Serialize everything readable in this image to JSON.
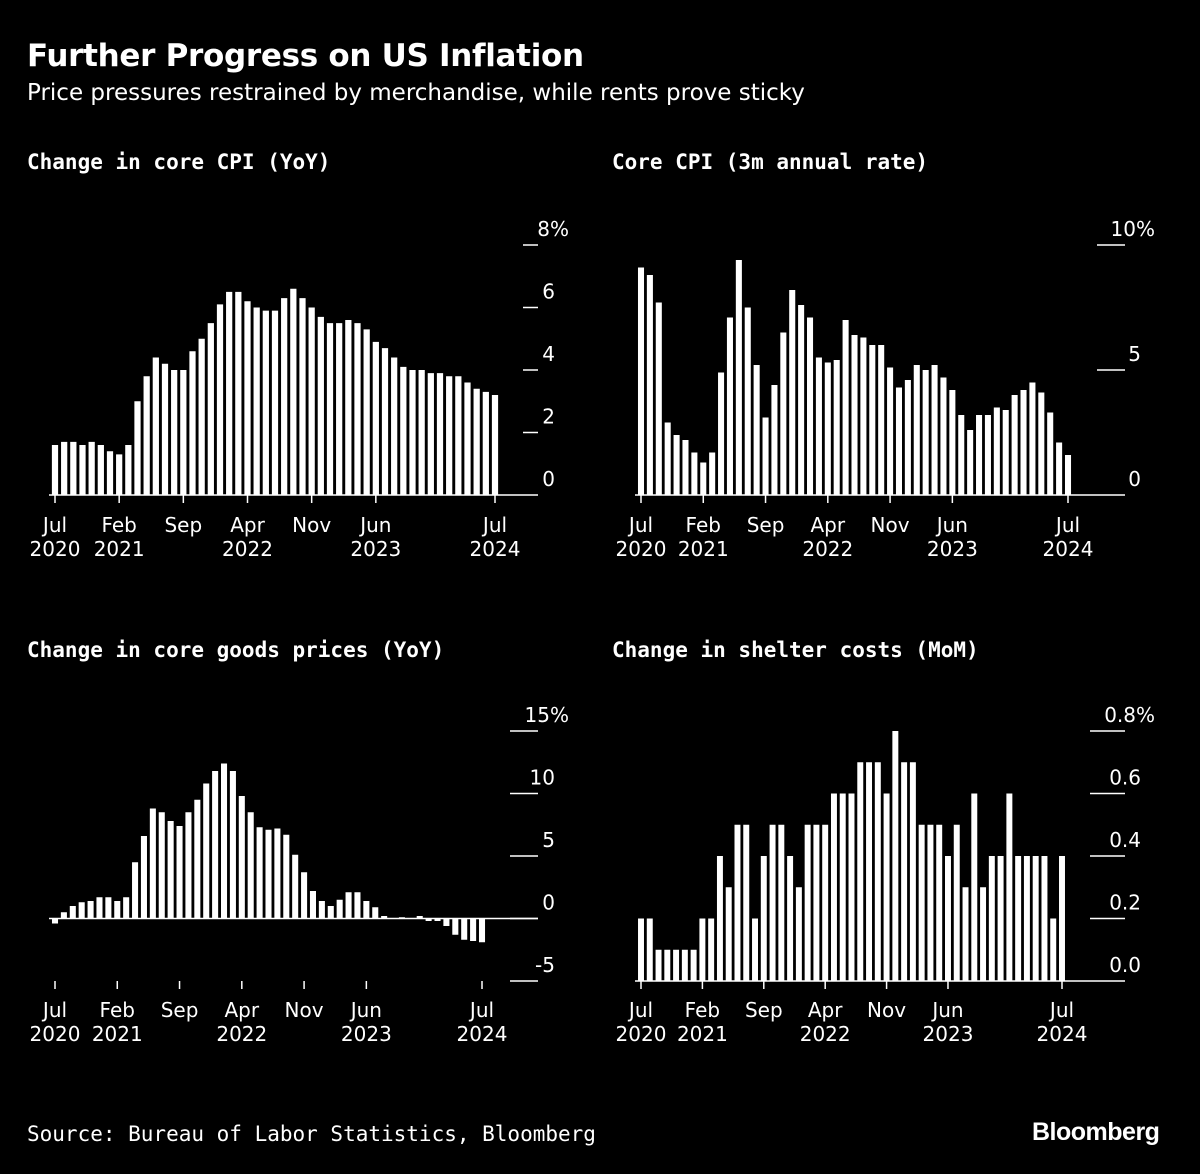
{
  "title": "Further Progress on US Inflation",
  "subtitle": "Price pressures restrained by merchandise, while rents prove sticky",
  "source": "Source: Bureau of Labor Statistics, Bloomberg",
  "logo": "Bloomberg",
  "colors": {
    "background": "#000000",
    "bars": "#ffffff",
    "text": "#ffffff"
  },
  "chart_data": [
    {
      "type": "bar",
      "title": "Change in core CPI (YoY)",
      "xlabel": "",
      "ylabel": "",
      "ylim": [
        0,
        8
      ],
      "grid": false,
      "y_ticks": [
        {
          "v": 0,
          "label": "0"
        },
        {
          "v": 2,
          "label": "2"
        },
        {
          "v": 4,
          "label": "4"
        },
        {
          "v": 6,
          "label": "6"
        },
        {
          "v": 8,
          "label": "8%"
        }
      ],
      "x_ticks": [
        {
          "at": "2020-07",
          "label": "Jul",
          "year": "2020"
        },
        {
          "at": "2021-02",
          "label": "Feb",
          "year": "2021"
        },
        {
          "at": "2021-09",
          "label": "Sep",
          "year": ""
        },
        {
          "at": "2022-04",
          "label": "Apr",
          "year": "2022"
        },
        {
          "at": "2022-11",
          "label": "Nov",
          "year": ""
        },
        {
          "at": "2023-06",
          "label": "Jun",
          "year": "2023"
        },
        {
          "at": "2024-07",
          "label": "Jul",
          "year": "2024"
        }
      ],
      "categories": [
        "2020-07",
        "2020-08",
        "2020-09",
        "2020-10",
        "2020-11",
        "2020-12",
        "2021-01",
        "2021-02",
        "2021-03",
        "2021-04",
        "2021-05",
        "2021-06",
        "2021-07",
        "2021-08",
        "2021-09",
        "2021-10",
        "2021-11",
        "2021-12",
        "2022-01",
        "2022-02",
        "2022-03",
        "2022-04",
        "2022-05",
        "2022-06",
        "2022-07",
        "2022-08",
        "2022-09",
        "2022-10",
        "2022-11",
        "2022-12",
        "2023-01",
        "2023-02",
        "2023-03",
        "2023-04",
        "2023-05",
        "2023-06",
        "2023-07",
        "2023-08",
        "2023-09",
        "2023-10",
        "2023-11",
        "2023-12",
        "2024-01",
        "2024-02",
        "2024-03",
        "2024-04",
        "2024-05",
        "2024-06",
        "2024-07"
      ],
      "values": [
        1.6,
        1.7,
        1.7,
        1.6,
        1.7,
        1.6,
        1.4,
        1.3,
        1.6,
        3.0,
        3.8,
        4.4,
        4.2,
        4.0,
        4.0,
        4.6,
        5.0,
        5.5,
        6.1,
        6.5,
        6.5,
        6.2,
        6.0,
        5.9,
        5.9,
        6.3,
        6.6,
        6.3,
        6.0,
        5.7,
        5.5,
        5.5,
        5.6,
        5.5,
        5.3,
        4.9,
        4.7,
        4.4,
        4.1,
        4.0,
        4.0,
        3.9,
        3.9,
        3.8,
        3.8,
        3.6,
        3.4,
        3.3,
        3.2
      ]
    },
    {
      "type": "bar",
      "title": "Core CPI (3m annual rate)",
      "xlabel": "",
      "ylabel": "",
      "ylim": [
        0,
        10
      ],
      "grid": false,
      "y_ticks": [
        {
          "v": 0,
          "label": "0"
        },
        {
          "v": 5,
          "label": "5"
        },
        {
          "v": 10,
          "label": "10%"
        }
      ],
      "x_ticks": [
        {
          "at": "2020-07",
          "label": "Jul",
          "year": "2020"
        },
        {
          "at": "2021-02",
          "label": "Feb",
          "year": "2021"
        },
        {
          "at": "2021-09",
          "label": "Sep",
          "year": ""
        },
        {
          "at": "2022-04",
          "label": "Apr",
          "year": "2022"
        },
        {
          "at": "2022-11",
          "label": "Nov",
          "year": ""
        },
        {
          "at": "2023-06",
          "label": "Jun",
          "year": "2023"
        },
        {
          "at": "2024-07",
          "label": "Jul",
          "year": "2024"
        }
      ],
      "categories": [
        "2020-07",
        "2020-08",
        "2020-09",
        "2020-10",
        "2020-11",
        "2020-12",
        "2021-01",
        "2021-02",
        "2021-03",
        "2021-04",
        "2021-05",
        "2021-06",
        "2021-07",
        "2021-08",
        "2021-09",
        "2021-10",
        "2021-11",
        "2021-12",
        "2022-01",
        "2022-02",
        "2022-03",
        "2022-04",
        "2022-05",
        "2022-06",
        "2022-07",
        "2022-08",
        "2022-09",
        "2022-10",
        "2022-11",
        "2022-12",
        "2023-01",
        "2023-02",
        "2023-03",
        "2023-04",
        "2023-05",
        "2023-06",
        "2023-07",
        "2023-08",
        "2023-09",
        "2023-10",
        "2023-11",
        "2023-12",
        "2024-01",
        "2024-02",
        "2024-03",
        "2024-04",
        "2024-05",
        "2024-06",
        "2024-07"
      ],
      "values": [
        9.1,
        8.8,
        7.7,
        2.9,
        2.4,
        2.2,
        1.7,
        1.3,
        1.7,
        4.9,
        7.1,
        9.4,
        7.5,
        5.2,
        3.1,
        4.4,
        6.5,
        8.2,
        7.6,
        7.1,
        5.5,
        5.3,
        5.4,
        7.0,
        6.4,
        6.3,
        6.0,
        6.0,
        5.1,
        4.3,
        4.6,
        5.2,
        5.0,
        5.2,
        4.7,
        4.2,
        3.2,
        2.6,
        3.2,
        3.2,
        3.5,
        3.4,
        4.0,
        4.2,
        4.5,
        4.1,
        3.3,
        2.1,
        1.6
      ]
    },
    {
      "type": "bar",
      "title": "Change in core goods prices (YoY)",
      "xlabel": "",
      "ylabel": "",
      "ylim": [
        -5,
        15
      ],
      "grid": false,
      "y_ticks": [
        {
          "v": -5,
          "label": "-5"
        },
        {
          "v": 0,
          "label": "0"
        },
        {
          "v": 5,
          "label": "5"
        },
        {
          "v": 10,
          "label": "10"
        },
        {
          "v": 15,
          "label": "15%"
        }
      ],
      "x_ticks": [
        {
          "at": "2020-07",
          "label": "Jul",
          "year": "2020"
        },
        {
          "at": "2021-02",
          "label": "Feb",
          "year": "2021"
        },
        {
          "at": "2021-09",
          "label": "Sep",
          "year": ""
        },
        {
          "at": "2022-04",
          "label": "Apr",
          "year": "2022"
        },
        {
          "at": "2022-11",
          "label": "Nov",
          "year": ""
        },
        {
          "at": "2023-06",
          "label": "Jun",
          "year": "2023"
        },
        {
          "at": "2024-07",
          "label": "Jul",
          "year": "2024"
        }
      ],
      "categories": [
        "2020-07",
        "2020-08",
        "2020-09",
        "2020-10",
        "2020-11",
        "2020-12",
        "2021-01",
        "2021-02",
        "2021-03",
        "2021-04",
        "2021-05",
        "2021-06",
        "2021-07",
        "2021-08",
        "2021-09",
        "2021-10",
        "2021-11",
        "2021-12",
        "2022-01",
        "2022-02",
        "2022-03",
        "2022-04",
        "2022-05",
        "2022-06",
        "2022-07",
        "2022-08",
        "2022-09",
        "2022-10",
        "2022-11",
        "2022-12",
        "2023-01",
        "2023-02",
        "2023-03",
        "2023-04",
        "2023-05",
        "2023-06",
        "2023-07",
        "2023-08",
        "2023-09",
        "2023-10",
        "2023-11",
        "2023-12",
        "2024-01",
        "2024-02",
        "2024-03",
        "2024-04",
        "2024-05",
        "2024-06",
        "2024-07"
      ],
      "values": [
        -0.4,
        0.5,
        1.0,
        1.3,
        1.4,
        1.7,
        1.7,
        1.4,
        1.7,
        4.5,
        6.6,
        8.8,
        8.5,
        7.8,
        7.4,
        8.5,
        9.5,
        10.8,
        11.8,
        12.4,
        11.8,
        9.8,
        8.5,
        7.3,
        7.1,
        7.2,
        6.7,
        5.1,
        3.7,
        2.2,
        1.4,
        1.0,
        1.5,
        2.1,
        2.1,
        1.4,
        0.9,
        0.2,
        0.0,
        0.1,
        0.0,
        0.2,
        -0.2,
        -0.2,
        -0.6,
        -1.3,
        -1.7,
        -1.8,
        -1.9
      ]
    },
    {
      "type": "bar",
      "title": "Change in shelter costs (MoM)",
      "xlabel": "",
      "ylabel": "",
      "ylim": [
        0,
        0.8
      ],
      "grid": false,
      "y_ticks": [
        {
          "v": 0,
          "label": "0.0"
        },
        {
          "v": 0.2,
          "label": "0.2"
        },
        {
          "v": 0.4,
          "label": "0.4"
        },
        {
          "v": 0.6,
          "label": "0.6"
        },
        {
          "v": 0.8,
          "label": "0.8%"
        }
      ],
      "x_ticks": [
        {
          "at": "2020-07",
          "label": "Jul",
          "year": "2020"
        },
        {
          "at": "2021-02",
          "label": "Feb",
          "year": "2021"
        },
        {
          "at": "2021-09",
          "label": "Sep",
          "year": ""
        },
        {
          "at": "2022-04",
          "label": "Apr",
          "year": "2022"
        },
        {
          "at": "2022-11",
          "label": "Nov",
          "year": ""
        },
        {
          "at": "2023-06",
          "label": "Jun",
          "year": "2023"
        },
        {
          "at": "2024-07",
          "label": "Jul",
          "year": "2024"
        }
      ],
      "categories": [
        "2020-07",
        "2020-08",
        "2020-09",
        "2020-10",
        "2020-11",
        "2020-12",
        "2021-01",
        "2021-02",
        "2021-03",
        "2021-04",
        "2021-05",
        "2021-06",
        "2021-07",
        "2021-08",
        "2021-09",
        "2021-10",
        "2021-11",
        "2021-12",
        "2022-01",
        "2022-02",
        "2022-03",
        "2022-04",
        "2022-05",
        "2022-06",
        "2022-07",
        "2022-08",
        "2022-09",
        "2022-10",
        "2022-11",
        "2022-12",
        "2023-01",
        "2023-02",
        "2023-03",
        "2023-04",
        "2023-05",
        "2023-06",
        "2023-07",
        "2023-08",
        "2023-09",
        "2023-10",
        "2023-11",
        "2023-12",
        "2024-01",
        "2024-02",
        "2024-03",
        "2024-04",
        "2024-05",
        "2024-06",
        "2024-07"
      ],
      "values": [
        0.2,
        0.2,
        0.1,
        0.1,
        0.1,
        0.1,
        0.1,
        0.2,
        0.2,
        0.4,
        0.3,
        0.5,
        0.5,
        0.2,
        0.4,
        0.5,
        0.5,
        0.4,
        0.3,
        0.5,
        0.5,
        0.5,
        0.6,
        0.6,
        0.6,
        0.7,
        0.7,
        0.7,
        0.6,
        0.8,
        0.7,
        0.7,
        0.5,
        0.5,
        0.5,
        0.4,
        0.5,
        0.3,
        0.6,
        0.3,
        0.4,
        0.4,
        0.6,
        0.4,
        0.4,
        0.4,
        0.4,
        0.2,
        0.4
      ]
    }
  ]
}
